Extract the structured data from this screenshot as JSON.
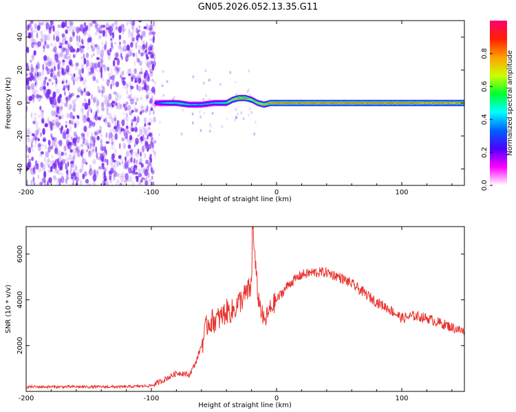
{
  "title": "GN05.2026.052.13.35.G11",
  "colors": {
    "snr_line": "#e8302a",
    "scatter_base": "#7b2cf0",
    "colorbar": [
      "#ffffff",
      "#ff00ff",
      "#4b00ff",
      "#0060ff",
      "#00ffff",
      "#00ff30",
      "#ccff00",
      "#ffa000",
      "#ff2000",
      "#ff0070"
    ]
  },
  "chart_data": [
    {
      "type": "heatmap",
      "xlabel": "Height of straight line (km)",
      "ylabel": "Frequency (Hz)",
      "xlim": [
        -200,
        150
      ],
      "ylim": [
        -50,
        50
      ],
      "xticks": [
        -200,
        -100,
        0,
        100
      ],
      "yticks": [
        -40,
        -20,
        0,
        20,
        40
      ],
      "ridge": {
        "description_x": [
          -97,
          -90,
          -80,
          -70,
          -60,
          -50,
          -40,
          -35,
          -30,
          -25,
          -20,
          -15,
          -10,
          -5,
          0,
          20,
          40,
          60,
          80,
          100,
          120,
          150
        ],
        "frequency_hz": [
          0,
          0,
          0,
          -1,
          -1,
          0,
          0,
          2,
          3,
          3,
          2,
          0,
          -1,
          0,
          0,
          0,
          0,
          0,
          0,
          0,
          0,
          0
        ],
        "amplitude": [
          0.3,
          0.5,
          0.6,
          0.5,
          0.45,
          0.5,
          0.6,
          0.8,
          0.9,
          0.9,
          0.7,
          0.8,
          0.85,
          0.9,
          0.95,
          0.95,
          0.95,
          0.95,
          0.95,
          0.95,
          0.9,
          0.9
        ]
      },
      "noise_region_x": [
        -200,
        -97
      ],
      "colorbar": {
        "label": "Normalized spectral amplitude",
        "range": [
          0.0,
          1.0
        ],
        "ticks": [
          "0.0",
          "0.2",
          "0.4",
          "0.6",
          "0.8"
        ]
      }
    },
    {
      "type": "line",
      "xlabel": "Height of straight line (km)",
      "ylabel": "SNR (10 * v/v)",
      "xlim": [
        -200,
        150
      ],
      "ylim": [
        0,
        7200
      ],
      "xticks": [
        -200,
        -100,
        0,
        100
      ],
      "yticks": [
        2000,
        4000,
        6000
      ],
      "series": [
        {
          "x": [
            -200,
            -180,
            -160,
            -140,
            -120,
            -100,
            -90,
            -80,
            -75,
            -70,
            -65,
            -60,
            -55,
            -50,
            -45,
            -40,
            -35,
            -30,
            -25,
            -20,
            -19,
            -15,
            -10,
            -5,
            0,
            10,
            20,
            30,
            40,
            50,
            60,
            70,
            80,
            90,
            100,
            110,
            120,
            130,
            140,
            150
          ],
          "y": [
            200,
            200,
            200,
            200,
            200,
            250,
            500,
            800,
            800,
            700,
            1200,
            2000,
            3000,
            3100,
            3200,
            3500,
            3500,
            3900,
            4200,
            4600,
            7000,
            4200,
            3000,
            3600,
            4000,
            4700,
            5100,
            5200,
            5200,
            5000,
            4700,
            4300,
            3900,
            3600,
            3200,
            3300,
            3200,
            3000,
            2800,
            2600
          ]
        }
      ]
    }
  ]
}
